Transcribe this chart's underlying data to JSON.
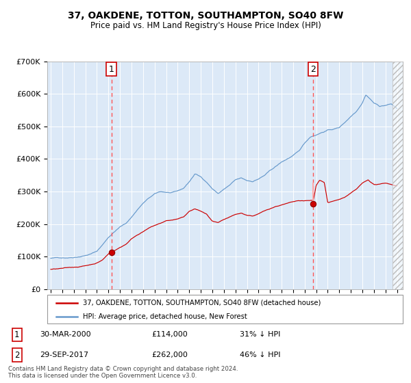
{
  "title": "37, OAKDENE, TOTTON, SOUTHAMPTON, SO40 8FW",
  "subtitle": "Price paid vs. HM Land Registry's House Price Index (HPI)",
  "legend_line1": "37, OAKDENE, TOTTON, SOUTHAMPTON, SO40 8FW (detached house)",
  "legend_line2": "HPI: Average price, detached house, New Forest",
  "footer": "Contains HM Land Registry data © Crown copyright and database right 2024.\nThis data is licensed under the Open Government Licence v3.0.",
  "annotation1_date": "30-MAR-2000",
  "annotation1_price": "£114,000",
  "annotation1_hpi": "31% ↓ HPI",
  "annotation2_date": "29-SEP-2017",
  "annotation2_price": "£262,000",
  "annotation2_hpi": "46% ↓ HPI",
  "bg_color": "#dce9f7",
  "red_color": "#cc0000",
  "blue_color": "#6699cc",
  "grid_color": "#ffffff",
  "vline_color": "#ff5555",
  "box_edge_color": "#cc0000",
  "ylim": [
    0,
    700000
  ],
  "yticks": [
    0,
    100000,
    200000,
    300000,
    400000,
    500000,
    600000,
    700000
  ],
  "ytick_labels": [
    "£0",
    "£100K",
    "£200K",
    "£300K",
    "£400K",
    "£500K",
    "£600K",
    "£700K"
  ],
  "vline1_x": 2000.25,
  "vline2_x": 2017.75,
  "marker1_x": 2000.25,
  "marker1_y": 114000,
  "marker2_x": 2017.75,
  "marker2_y": 262000,
  "hatch_start_x": 2024.6,
  "x_min": 1994.7,
  "x_max": 2025.5
}
